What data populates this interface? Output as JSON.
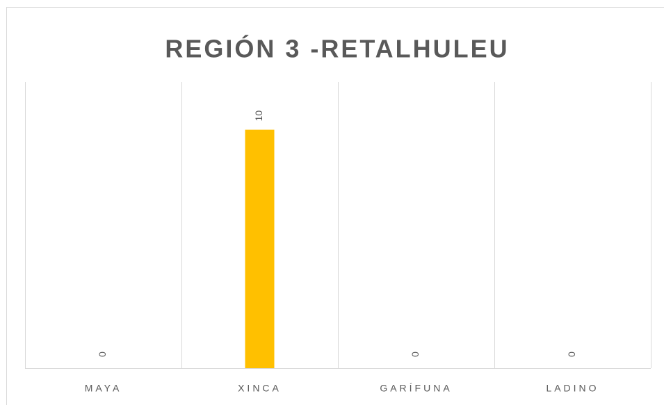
{
  "chart_data": {
    "type": "bar",
    "title": "REGIÓN 3 -RETALHULEU",
    "categories": [
      "MAYA",
      "XINCA",
      "GARÍFUNA",
      "LADINO"
    ],
    "values": [
      0,
      10,
      0,
      0
    ],
    "color": "#ffc000",
    "ylim": [
      0,
      12
    ]
  }
}
